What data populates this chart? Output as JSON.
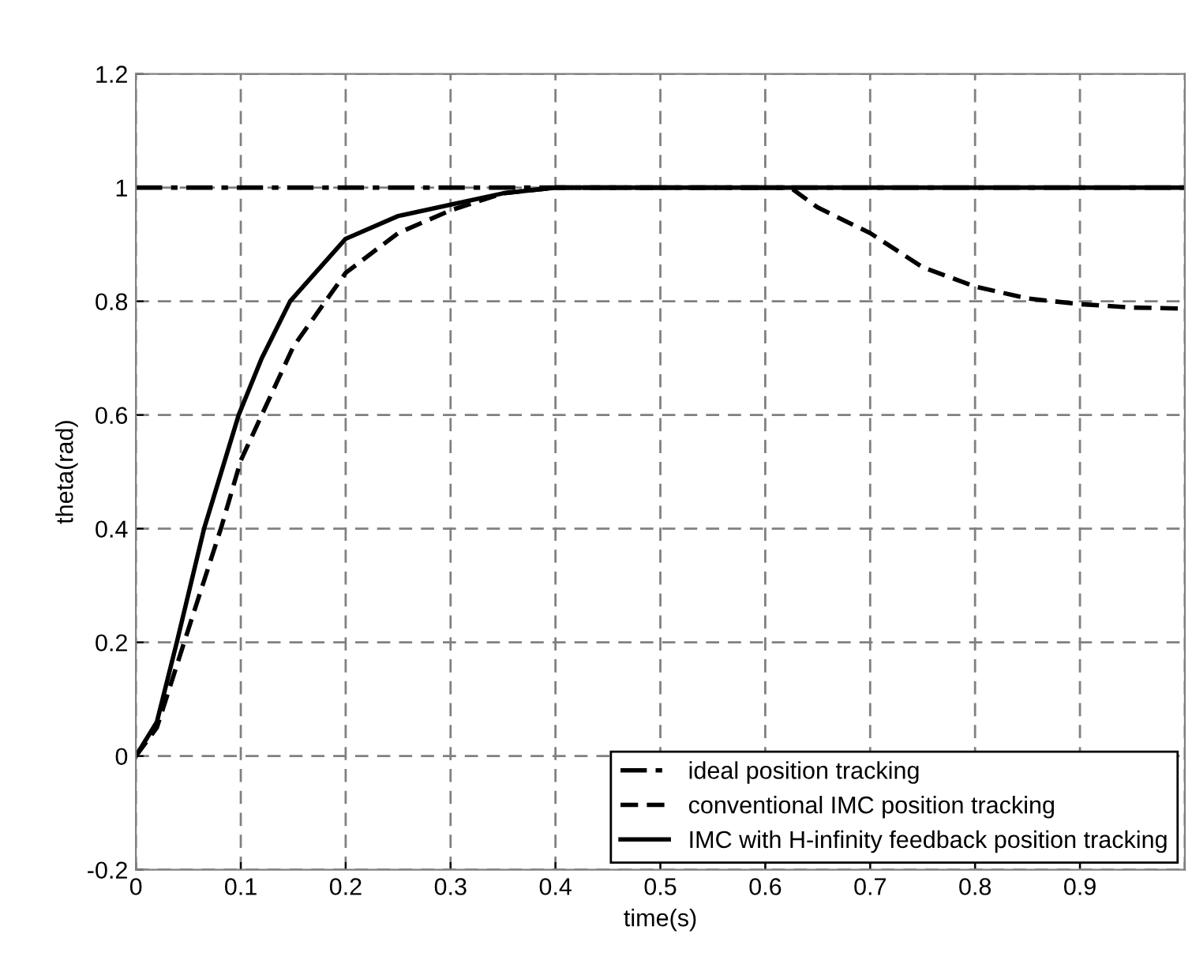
{
  "chart_data": {
    "type": "line",
    "xlabel": "time(s)",
    "ylabel": "theta(rad)",
    "xlim": [
      0,
      1
    ],
    "ylim": [
      -0.2,
      1.2
    ],
    "xticks": [
      0,
      0.1,
      0.2,
      0.3,
      0.4,
      0.5,
      0.6,
      0.7,
      0.8,
      0.9,
      {
        "value": 1,
        "label": null
      }
    ],
    "yticks": [
      -0.2,
      0,
      0.2,
      0.4,
      0.6,
      0.8,
      1,
      1.2
    ],
    "grid": true,
    "legend": "bottom right",
    "series": [
      {
        "name": "ideal position tracking",
        "color": "#000000",
        "line_style": "dashdot",
        "x": [
          0,
          1
        ],
        "values": [
          1,
          1
        ]
      },
      {
        "name": "conventional IMC position tracking",
        "color": "#000000",
        "line_style": "dashed",
        "x": [
          0,
          0.02,
          0.046,
          0.081,
          0.1,
          0.12,
          0.15,
          0.2,
          0.25,
          0.3,
          0.35,
          0.4,
          0.5,
          0.6,
          0.624,
          0.65,
          0.7,
          0.75,
          0.8,
          0.85,
          0.9,
          0.95,
          1
        ],
        "values": [
          0,
          0.05,
          0.2,
          0.4,
          0.52,
          0.6,
          0.72,
          0.85,
          0.92,
          0.96,
          0.99,
          1,
          1,
          1,
          1,
          0.965,
          0.92,
          0.86,
          0.826,
          0.805,
          0.795,
          0.789,
          0.787
        ]
      },
      {
        "name": "IMC with H-infinity feedback position tracking",
        "color": "#000000",
        "line_style": "solid",
        "x": [
          0,
          0.02,
          0.039,
          0.065,
          0.098,
          0.12,
          0.147,
          0.2,
          0.25,
          0.3,
          0.35,
          0.4,
          1
        ],
        "values": [
          0,
          0.06,
          0.2,
          0.4,
          0.6,
          0.7,
          0.8,
          0.91,
          0.95,
          0.97,
          0.99,
          1,
          1
        ]
      }
    ]
  }
}
